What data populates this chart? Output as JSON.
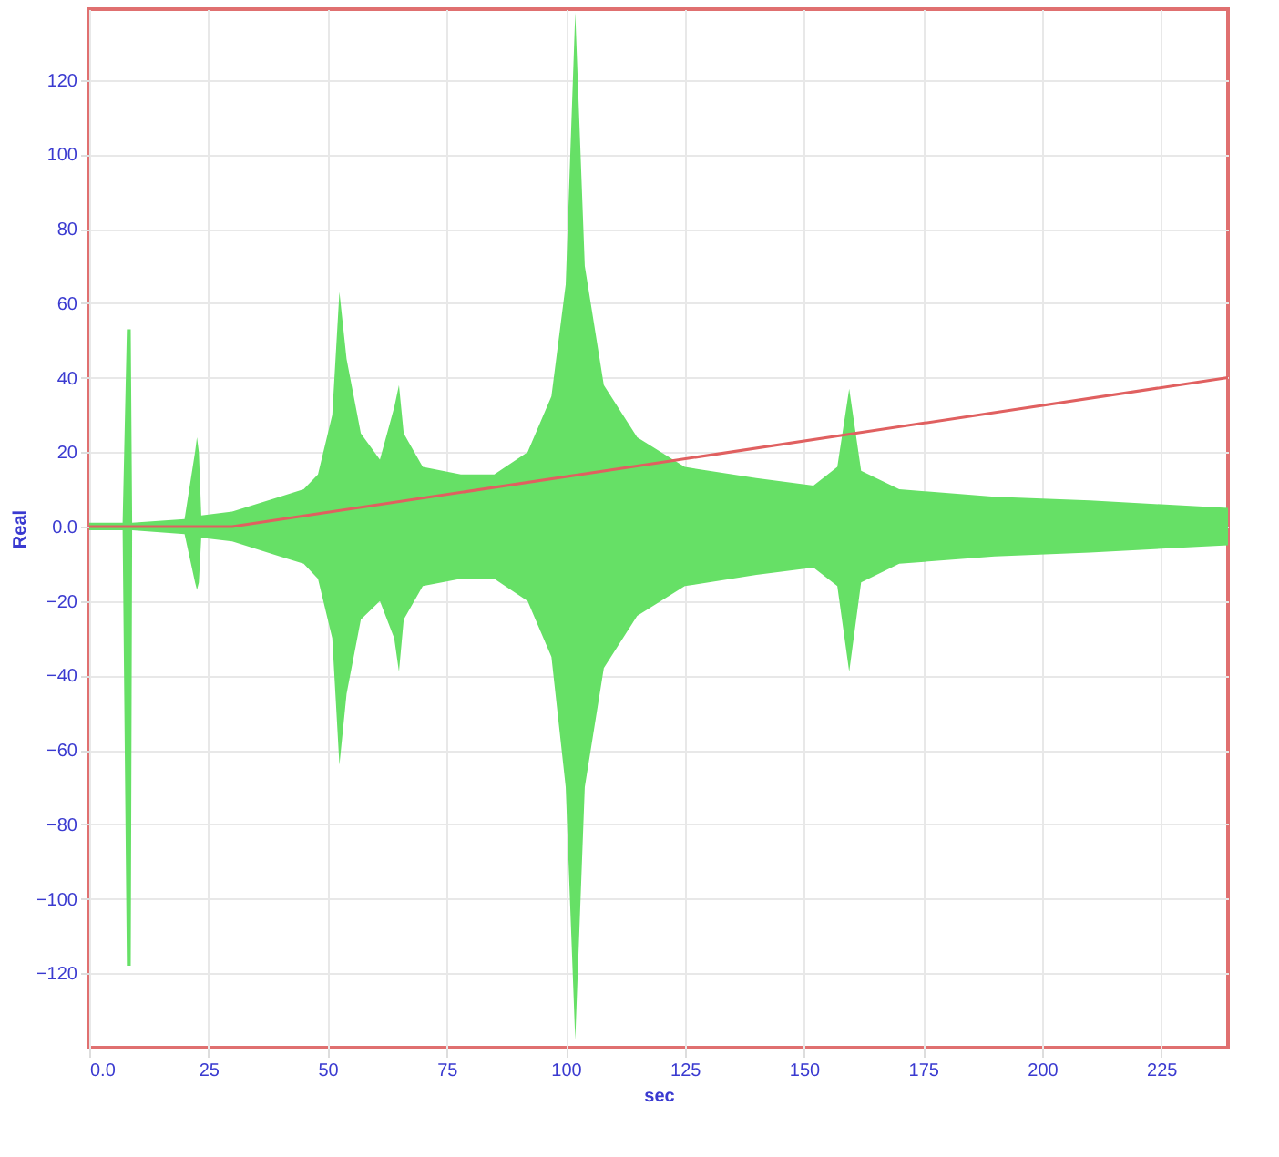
{
  "chart_data": {
    "type": "line",
    "xlabel": "sec",
    "ylabel": "Real",
    "xlim": [
      0,
      239
    ],
    "ylim": [
      -140,
      139
    ],
    "xticks": [
      {
        "value": 0,
        "label": "0.0"
      },
      25,
      50,
      75,
      100,
      125,
      150,
      175,
      200,
      225
    ],
    "yticks": [
      -120,
      -100,
      -80,
      -60,
      -40,
      -20,
      {
        "value": 0,
        "label": "0.0"
      },
      20,
      40,
      60,
      80,
      100,
      120
    ],
    "grid": true,
    "series": [
      {
        "type": "area",
        "color": "#66e066",
        "x": [
          0,
          7,
          7.9,
          8.3,
          8.7,
          9,
          20,
          22.2,
          22.6,
          23,
          23.5,
          30,
          40,
          45,
          48,
          51,
          52.5,
          54,
          57,
          61,
          64,
          65,
          66,
          70,
          78,
          85,
          92,
          97,
          100,
          102,
          104,
          108,
          115,
          125,
          140,
          152,
          157,
          159.5,
          162,
          170,
          190,
          210,
          239
        ],
        "values": [
          1,
          1,
          53,
          53,
          53,
          1,
          2,
          20,
          24,
          20,
          3,
          4,
          8,
          10,
          14,
          30,
          63,
          45,
          25,
          18,
          32,
          38,
          25,
          16,
          14,
          14,
          20,
          35,
          65,
          138,
          70,
          38,
          24,
          16,
          13,
          11,
          16,
          37,
          15,
          10,
          8,
          7,
          5
        ]
      },
      {
        "type": "area",
        "color": "#66e066",
        "x": [
          0,
          7,
          7.9,
          8.3,
          8.7,
          9,
          20,
          22.2,
          22.6,
          23,
          23.5,
          30,
          40,
          45,
          48,
          51,
          52.5,
          54,
          57,
          61,
          64,
          65,
          66,
          70,
          78,
          85,
          92,
          97,
          100,
          102,
          104,
          108,
          115,
          125,
          140,
          152,
          157,
          159.5,
          162,
          170,
          190,
          210,
          239
        ],
        "values": [
          -1,
          -1,
          -118,
          -118,
          -118,
          -1,
          -2,
          -15,
          -17,
          -15,
          -3,
          -4,
          -8,
          -10,
          -14,
          -30,
          -64,
          -45,
          -25,
          -20,
          -30,
          -39,
          -25,
          -16,
          -14,
          -14,
          -20,
          -35,
          -70,
          -138,
          -70,
          -38,
          -24,
          -16,
          -13,
          -11,
          -16,
          -39,
          -15,
          -10,
          -8,
          -7,
          -5
        ]
      },
      {
        "color": "#e06060",
        "x": [
          0,
          30,
          239
        ],
        "values": [
          0,
          0,
          40
        ]
      }
    ]
  }
}
